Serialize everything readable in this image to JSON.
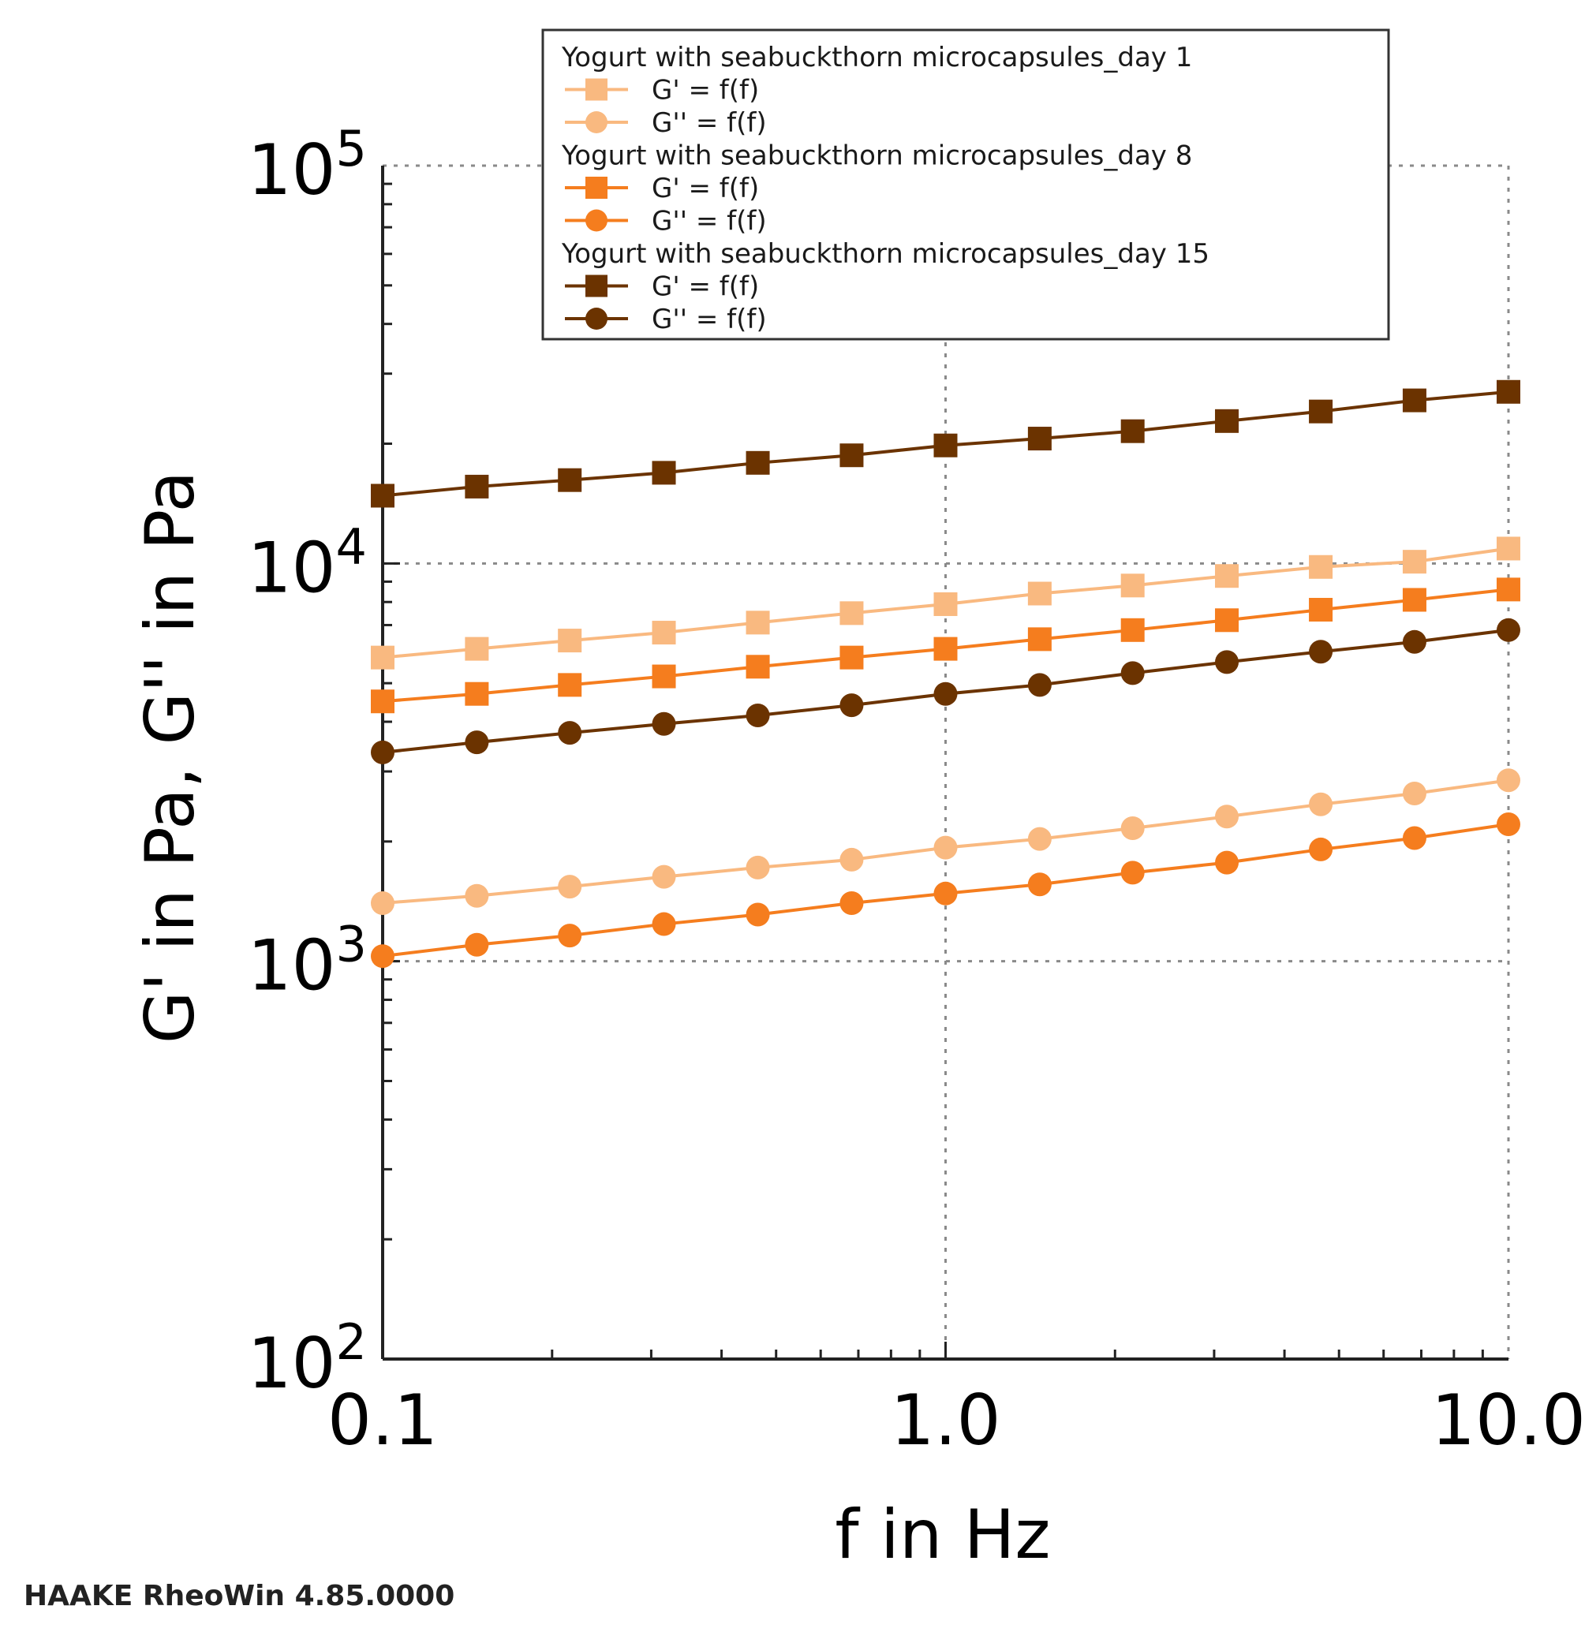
{
  "chart_data": {
    "type": "line",
    "title": "",
    "xlabel": "f in Hz",
    "ylabel": "G' in Pa, G'' in Pa",
    "x_scale": "log",
    "y_scale": "log",
    "xlim": [
      0.1,
      10.0
    ],
    "ylim": [
      100,
      100000
    ],
    "x_ticks": [
      {
        "value": 0.1,
        "label": "0.1"
      },
      {
        "value": 1.0,
        "label": "1.0"
      },
      {
        "value": 10.0,
        "label": "10.0"
      }
    ],
    "y_ticks": [
      {
        "value": 100,
        "base": "10",
        "exp": "2"
      },
      {
        "value": 1000,
        "base": "10",
        "exp": "3"
      },
      {
        "value": 10000,
        "base": "10",
        "exp": "4"
      },
      {
        "value": 100000,
        "base": "10",
        "exp": "5"
      }
    ],
    "grid": true,
    "legend_position": "top-right",
    "x": [
      0.1,
      0.147,
      0.215,
      0.316,
      0.464,
      0.681,
      1.0,
      1.47,
      2.15,
      3.16,
      4.64,
      6.81,
      10.0
    ],
    "groups": [
      {
        "title": "Yogurt with seabuckthorn microcapsules_day 1",
        "series": [
          {
            "name": "G' = f(f)",
            "marker": "square",
            "color": "#f9b980",
            "values": [
              5800,
              6100,
              6400,
              6700,
              7100,
              7500,
              7900,
              8400,
              8800,
              9300,
              9800,
              10100,
              10900
            ]
          },
          {
            "name": "G'' = f(f)",
            "marker": "circle",
            "color": "#f9b980",
            "values": [
              1400,
              1460,
              1540,
              1630,
              1720,
              1800,
              1930,
              2030,
              2160,
              2310,
              2480,
              2640,
              2850
            ]
          }
        ]
      },
      {
        "title": "Yogurt with seabuckthorn microcapsules_day 8",
        "series": [
          {
            "name": "G' = f(f)",
            "marker": "square",
            "color": "#f57d1e",
            "values": [
              4500,
              4700,
              4950,
              5200,
              5500,
              5800,
              6100,
              6450,
              6800,
              7200,
              7650,
              8100,
              8600
            ]
          },
          {
            "name": "G'' = f(f)",
            "marker": "circle",
            "color": "#f57d1e",
            "values": [
              1030,
              1100,
              1160,
              1240,
              1310,
              1400,
              1480,
              1560,
              1670,
              1770,
              1910,
              2040,
              2210
            ]
          }
        ]
      },
      {
        "title": "Yogurt with seabuckthorn microcapsules_day 15",
        "series": [
          {
            "name": "G' = f(f)",
            "marker": "square",
            "color": "#6b3300",
            "values": [
              14800,
              15600,
              16200,
              16900,
              17900,
              18700,
              19800,
              20600,
              21500,
              22800,
              24100,
              25700,
              27000
            ]
          },
          {
            "name": "G'' = f(f)",
            "marker": "circle",
            "color": "#6b3300",
            "values": [
              3350,
              3550,
              3750,
              3950,
              4150,
              4400,
              4700,
              4950,
              5300,
              5650,
              6000,
              6350,
              6800
            ]
          }
        ]
      }
    ]
  },
  "footer": {
    "text": "HAAKE RheoWin 4.85.0000"
  }
}
